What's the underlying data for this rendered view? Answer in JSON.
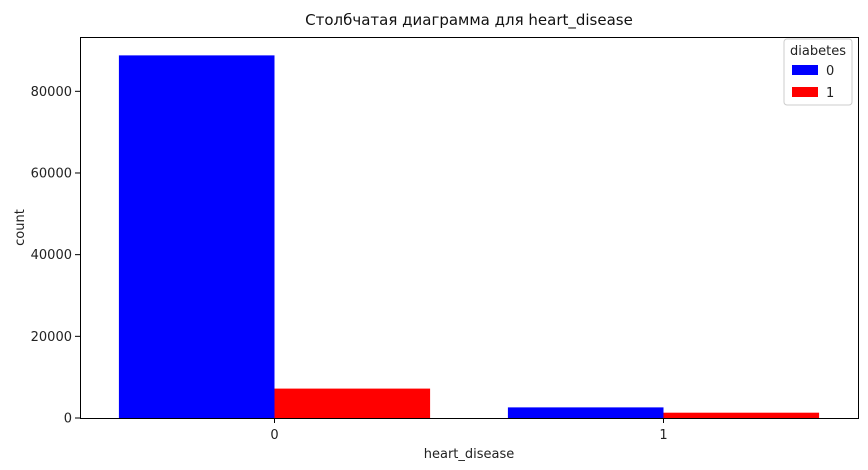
{
  "chart_data": {
    "type": "bar",
    "title": "Столбчатая диаграмма для heart_disease",
    "xlabel": "heart_disease",
    "ylabel": "count",
    "categories": [
      "0",
      "1"
    ],
    "series": [
      {
        "name": "0",
        "color": "#0000ff",
        "values": [
          88800,
          2600
        ]
      },
      {
        "name": "1",
        "color": "#ff0000",
        "values": [
          7200,
          1300
        ]
      }
    ],
    "ylim": [
      0,
      93300
    ],
    "yticks": [
      0,
      20000,
      40000,
      60000,
      80000
    ],
    "legend": {
      "title": "diabetes",
      "placement": "top-right"
    },
    "grid": false
  }
}
